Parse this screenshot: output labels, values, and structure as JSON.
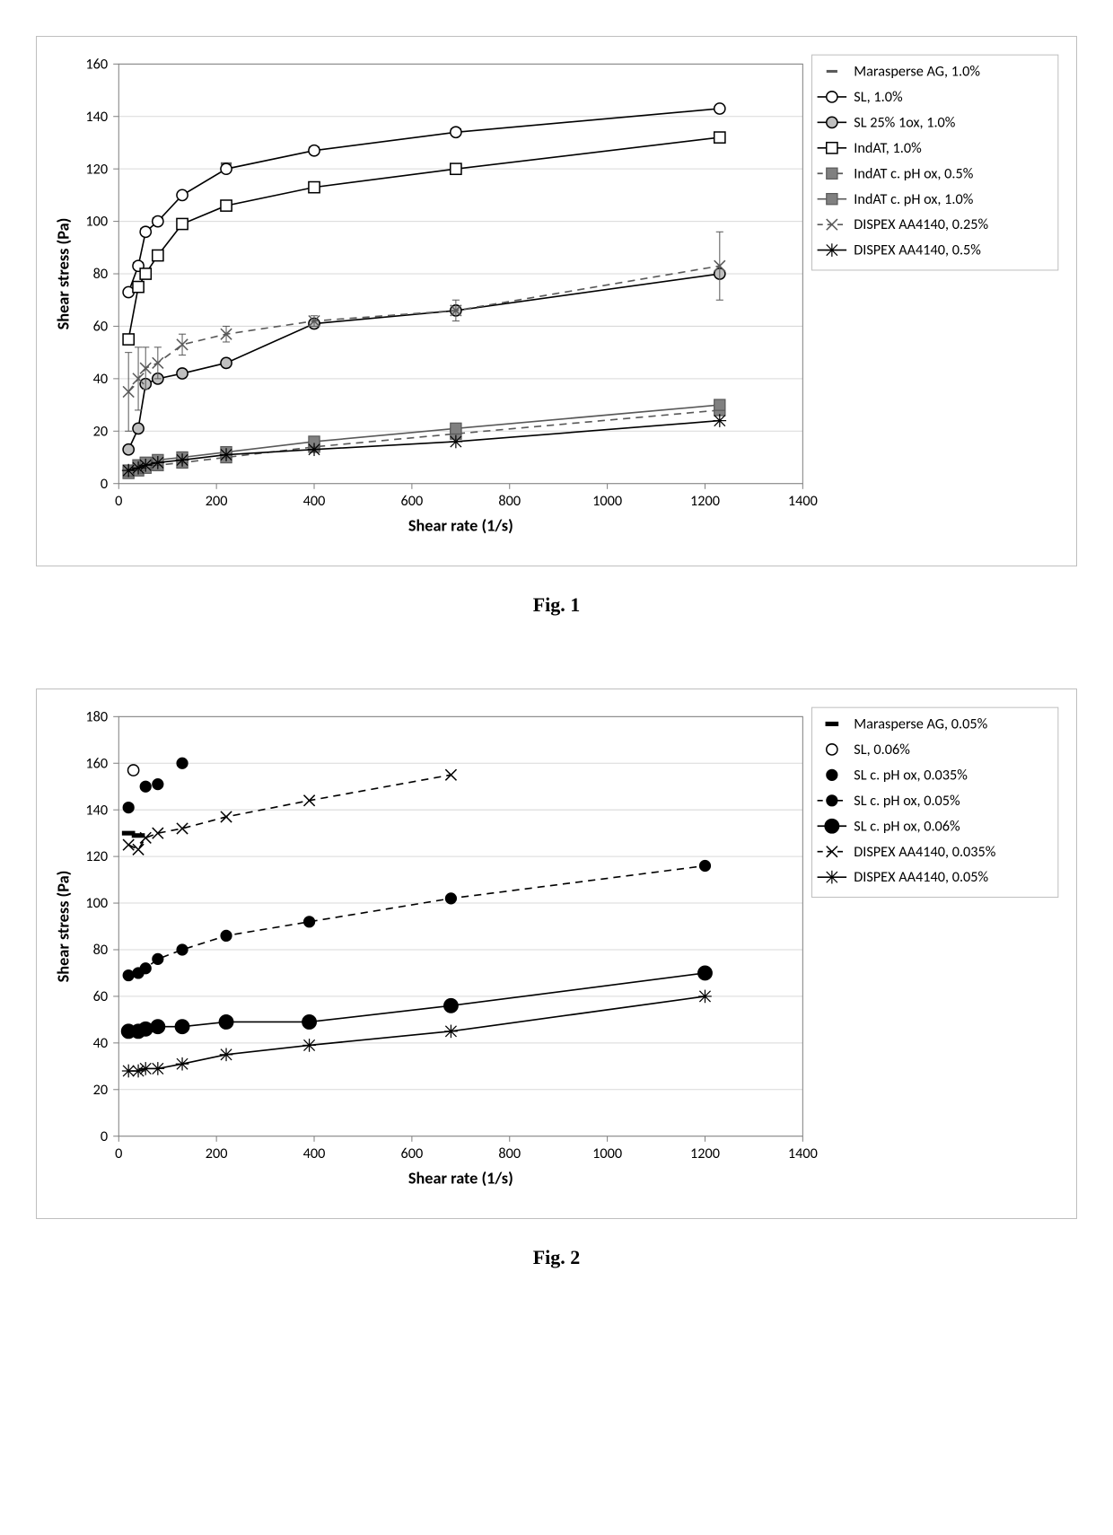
{
  "fig1": {
    "caption": "Fig. 1",
    "type": "scatter-line",
    "xlabel": "Shear rate (1/s)",
    "ylabel": "Shear stress (Pa)",
    "xlim": [
      0,
      1400
    ],
    "ylim": [
      0,
      160
    ],
    "xtick_step": 200,
    "ytick_step": 20,
    "background_color": "#ffffff",
    "grid_color": "#d9d9d9",
    "border_color": "#bfbfbf",
    "plot_border_color": "#808080",
    "label_fontsize": 18,
    "tick_fontsize": 16,
    "legend_fontsize": 16,
    "series": [
      {
        "name": "Marasperse AG, 1.0%",
        "marker": "dash",
        "line_style": "none",
        "color": "#595959",
        "x": [
          20,
          40,
          55,
          80,
          130,
          220,
          400,
          690,
          1230
        ],
        "y": [
          73,
          84,
          97,
          101,
          110,
          122,
          128,
          135,
          143
        ]
      },
      {
        "name": "SL, 1.0%",
        "marker": "circle-open",
        "line_style": "solid",
        "color": "#000000",
        "fill": "#ffffff",
        "x": [
          20,
          40,
          55,
          80,
          130,
          220,
          400,
          690,
          1230
        ],
        "y": [
          73,
          83,
          96,
          100,
          110,
          120,
          127,
          134,
          143
        ]
      },
      {
        "name": "SL 25% 1ox, 1.0%",
        "marker": "circle-filled",
        "line_style": "solid",
        "color": "#000000",
        "fill": "#bfbfbf",
        "x": [
          20,
          40,
          55,
          80,
          130,
          220,
          400,
          690,
          1230
        ],
        "y": [
          13,
          21,
          38,
          40,
          42,
          46,
          61,
          66,
          80
        ]
      },
      {
        "name": "IndAT, 1.0%",
        "marker": "square-open",
        "line_style": "solid",
        "color": "#000000",
        "fill": "#ffffff",
        "x": [
          20,
          40,
          55,
          80,
          130,
          220,
          400,
          690,
          1230
        ],
        "y": [
          55,
          75,
          80,
          87,
          99,
          106,
          113,
          120,
          132
        ]
      },
      {
        "name": "IndAT c. pH ox, 0.5%",
        "marker": "square-filled",
        "line_style": "dashed",
        "color": "#595959",
        "fill": "#808080",
        "x": [
          20,
          40,
          55,
          80,
          130,
          220,
          400,
          690,
          1230
        ],
        "y": [
          4,
          5,
          6,
          7,
          8,
          10,
          14,
          19,
          28
        ]
      },
      {
        "name": "IndAT c. pH ox, 1.0%",
        "marker": "square-filled",
        "line_style": "solid",
        "color": "#595959",
        "fill": "#808080",
        "x": [
          20,
          40,
          55,
          80,
          130,
          220,
          400,
          690,
          1230
        ],
        "y": [
          5,
          7,
          8,
          9,
          10,
          12,
          16,
          21,
          30
        ]
      },
      {
        "name": "DISPEX AA4140, 0.25%",
        "marker": "x",
        "line_style": "dashed",
        "color": "#595959",
        "x": [
          20,
          40,
          55,
          80,
          130,
          220,
          400,
          690,
          1230
        ],
        "y": [
          35,
          40,
          44,
          46,
          53,
          57,
          62,
          66,
          83
        ],
        "err": [
          15,
          12,
          8,
          6,
          4,
          3,
          2,
          4,
          13
        ]
      },
      {
        "name": "DISPEX AA4140, 0.5%",
        "marker": "asterisk",
        "line_style": "solid",
        "color": "#000000",
        "x": [
          20,
          40,
          55,
          80,
          130,
          220,
          400,
          690,
          1230
        ],
        "y": [
          5,
          6,
          7,
          8,
          9,
          11,
          13,
          16,
          24
        ]
      }
    ]
  },
  "fig2": {
    "caption": "Fig. 2",
    "type": "scatter-line",
    "xlabel": "Shear rate (1/s)",
    "ylabel": "Shear stress (Pa)",
    "xlim": [
      0,
      1400
    ],
    "ylim": [
      0,
      180
    ],
    "xtick_step": 200,
    "ytick_step": 20,
    "background_color": "#ffffff",
    "grid_color": "#d9d9d9",
    "border_color": "#bfbfbf",
    "plot_border_color": "#808080",
    "label_fontsize": 18,
    "tick_fontsize": 16,
    "legend_fontsize": 16,
    "series": [
      {
        "name": "Marasperse AG, 0.05%",
        "marker": "dash-thick",
        "line_style": "none",
        "color": "#000000",
        "x": [
          20,
          40
        ],
        "y": [
          130,
          129
        ]
      },
      {
        "name": "SL, 0.06%",
        "marker": "circle-open",
        "line_style": "none",
        "color": "#000000",
        "fill": "#ffffff",
        "x": [
          30
        ],
        "y": [
          157
        ]
      },
      {
        "name": "SL c. pH ox, 0.035%",
        "marker": "circle-black",
        "line_style": "none",
        "color": "#000000",
        "fill": "#000000",
        "x": [
          20,
          55,
          80,
          130
        ],
        "y": [
          141,
          150,
          151,
          160
        ]
      },
      {
        "name": "SL c. pH ox, 0.05%",
        "marker": "circle-black",
        "line_style": "dashed",
        "color": "#000000",
        "fill": "#000000",
        "x": [
          20,
          40,
          55,
          80,
          130,
          220,
          390,
          680,
          1200
        ],
        "y": [
          69,
          70,
          72,
          76,
          80,
          86,
          92,
          102,
          116
        ]
      },
      {
        "name": "SL c. pH ox, 0.06%",
        "marker": "circle-black-lg",
        "line_style": "solid",
        "color": "#000000",
        "fill": "#000000",
        "x": [
          20,
          40,
          55,
          80,
          130,
          220,
          390,
          680,
          1200
        ],
        "y": [
          45,
          45,
          46,
          47,
          47,
          49,
          49,
          56,
          70
        ]
      },
      {
        "name": "DISPEX AA4140, 0.035%",
        "marker": "x",
        "line_style": "dashed",
        "color": "#000000",
        "x": [
          20,
          40,
          55,
          80,
          130,
          220,
          390,
          680
        ],
        "y": [
          125,
          123,
          128,
          130,
          132,
          137,
          144,
          155
        ]
      },
      {
        "name": "DISPEX AA4140, 0.05%",
        "marker": "asterisk",
        "line_style": "solid",
        "color": "#000000",
        "x": [
          20,
          40,
          55,
          80,
          130,
          220,
          390,
          680,
          1200
        ],
        "y": [
          28,
          28,
          29,
          29,
          31,
          35,
          39,
          45,
          60
        ]
      }
    ]
  }
}
